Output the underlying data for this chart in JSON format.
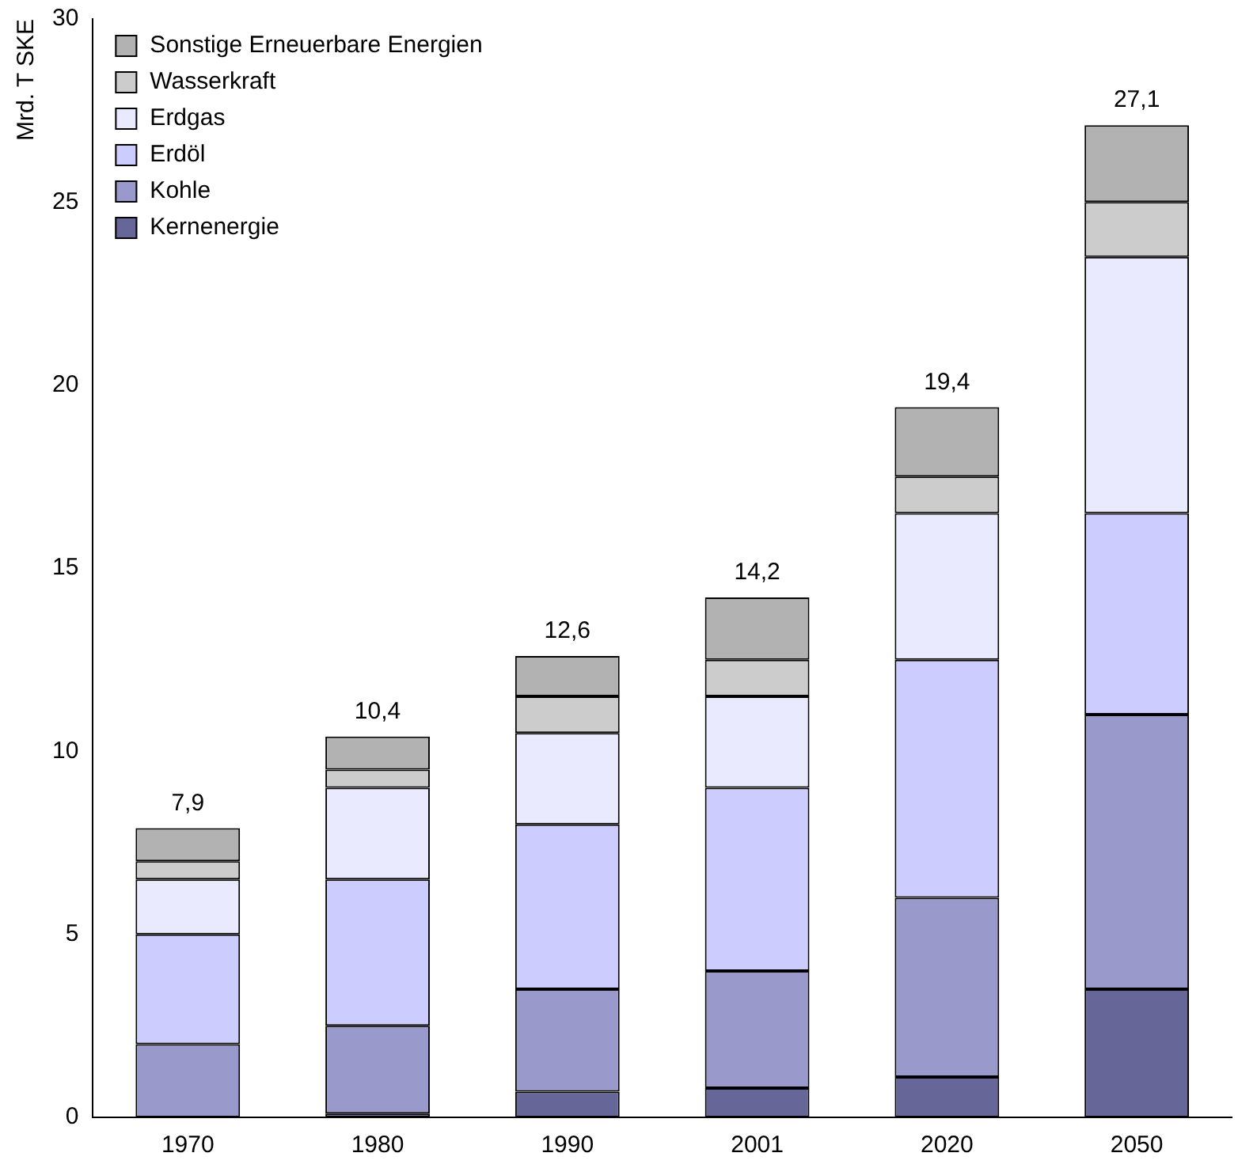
{
  "chart_data": {
    "type": "bar",
    "stacked": true,
    "ylabel": "Mrd. T SKE",
    "categories": [
      "1970",
      "1980",
      "1990",
      "2001",
      "2020",
      "2050"
    ],
    "series": [
      {
        "name": "Kernenergie",
        "color": "#666699",
        "values": [
          0,
          0.1,
          0.7,
          0.8,
          1.1,
          3.5
        ]
      },
      {
        "name": "Kohle",
        "color": "#9999cc",
        "values": [
          2,
          2.4,
          2.8,
          3.2,
          4.9,
          7.5
        ]
      },
      {
        "name": "Erdöl",
        "color": "#ccccff",
        "values": [
          3,
          4,
          4.5,
          5,
          6.5,
          5.5
        ]
      },
      {
        "name": "Erdgas",
        "color": "#eaeaff",
        "values": [
          1.5,
          2.5,
          2.5,
          2.5,
          4,
          7
        ]
      },
      {
        "name": "Wasserkraft",
        "color": "#cccccc",
        "values": [
          0.5,
          0.5,
          1,
          1,
          1,
          1.5
        ]
      },
      {
        "name": "Sonstige Erneuerbare Energien",
        "color": "#b2b2b2",
        "values": [
          0.9,
          0.9,
          1.1,
          1.7,
          1.9,
          2.1
        ]
      }
    ],
    "totals": [
      "7,9",
      "10,4",
      "12,6",
      "14,2",
      "19,4",
      "27,1"
    ],
    "ylim": [
      0,
      30
    ],
    "yticks": [
      0,
      5,
      10,
      15,
      20,
      25,
      30
    ],
    "grid": false,
    "legend": "top left"
  }
}
